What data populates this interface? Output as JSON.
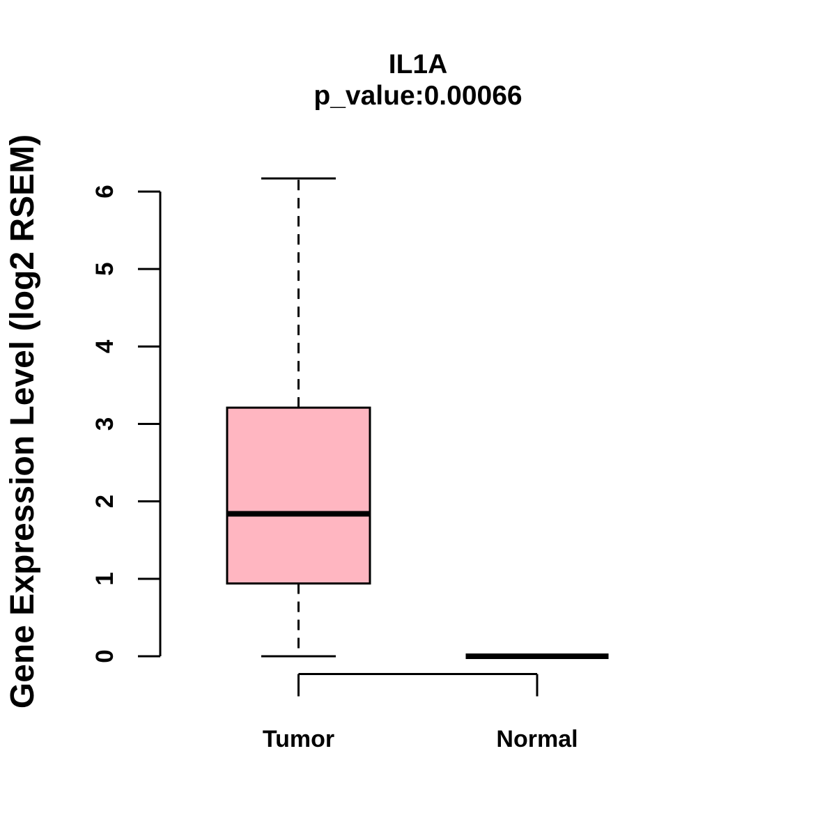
{
  "title": "IL1A",
  "subtitle": "p_value:0.00066",
  "ylabel": "Gene Expression Level (log2 RSEM)",
  "colors": {
    "box_fill": "#FFB6C1",
    "stroke": "#000000",
    "background": "#FFFFFF"
  },
  "chart_data": {
    "type": "boxplot",
    "title": "IL1A",
    "subtitle": "p_value:0.00066",
    "ylabel": "Gene Expression Level (log2 RSEM)",
    "xlabel": "",
    "categories": [
      "Tumor",
      "Normal"
    ],
    "yticks": [
      0,
      1,
      2,
      3,
      4,
      5,
      6
    ],
    "ylim": [
      0,
      6.2
    ],
    "grid": false,
    "legend": null,
    "series": [
      {
        "name": "Tumor",
        "whisker_low": 0,
        "q1": 0.94,
        "median": 1.84,
        "q3": 3.21,
        "whisker_high": 6.17,
        "fill": "#FFB6C1"
      },
      {
        "name": "Normal",
        "whisker_low": 0,
        "q1": 0,
        "median": 0,
        "q3": 0,
        "whisker_high": 0,
        "fill": "#FFB6C1"
      }
    ]
  }
}
